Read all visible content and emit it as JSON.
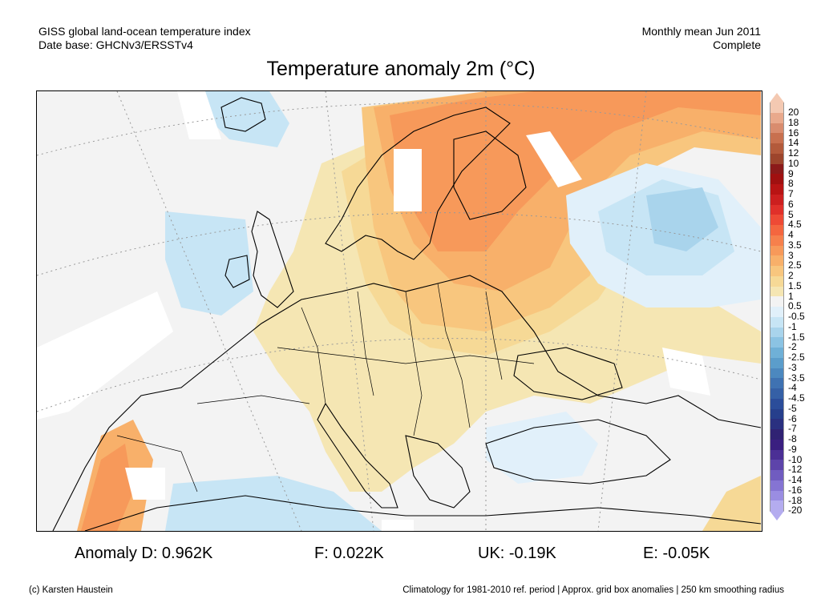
{
  "header": {
    "dataset_line1": "GISS global land-ocean temperature index",
    "dataset_line2": "Date base: GHCNv3/ERSSTv4",
    "period_line1": "Monthly mean Jun 2011",
    "period_line2": "Complete"
  },
  "title": "Temperature anomaly 2m (°C)",
  "colorbar": {
    "labels": [
      "20",
      "18",
      "16",
      "14",
      "12",
      "10",
      "9",
      "8",
      "7",
      "6",
      "5",
      "4.5",
      "4",
      "3.5",
      "3",
      "2.5",
      "2",
      "1.5",
      "1",
      "0.5",
      "-0.5",
      "-1",
      "-1.5",
      "-2",
      "-2.5",
      "-3",
      "-3.5",
      "-4",
      "-4.5",
      "-5",
      "-6",
      "-7",
      "-8",
      "-9",
      "-10",
      "-12",
      "-14",
      "-16",
      "-18",
      "-20"
    ],
    "colors": [
      "#f4c9b2",
      "#e9a98c",
      "#d98c6e",
      "#c8704f",
      "#b35a3b",
      "#9d452c",
      "#8b1a1a",
      "#a01010",
      "#b81414",
      "#cc1f1f",
      "#e0302a",
      "#ee4a35",
      "#f4663f",
      "#f6804c",
      "#f7995a",
      "#f8b06a",
      "#f8c67e",
      "#f6d996",
      "#f5e6b3",
      "#f3f3f3",
      "#e1f0fa",
      "#c7e5f5",
      "#a9d4ec",
      "#8bc3e3",
      "#6fb0d7",
      "#5b9dcb",
      "#4c88bf",
      "#3f72b2",
      "#3560a6",
      "#2b4d9a",
      "#263f8c",
      "#2a3080",
      "#302273",
      "#3a1f80",
      "#4b2f95",
      "#5d44aa",
      "#705cc0",
      "#8574d3",
      "#9a8de2",
      "#b4acef"
    ]
  },
  "stats": {
    "d": "Anomaly D: 0.962K",
    "f": "F: 0.022K",
    "uk": "UK: -0.19K",
    "e": "E: -0.05K"
  },
  "footer": {
    "credit": "(c) Karsten Haustein",
    "note": "Climatology for 1981-2010 ref. period | Approx. grid box anomalies | 250 km smoothing radius"
  },
  "map": {
    "missing_color": "#ffffff",
    "neutral_color": "#f3f3f3"
  }
}
